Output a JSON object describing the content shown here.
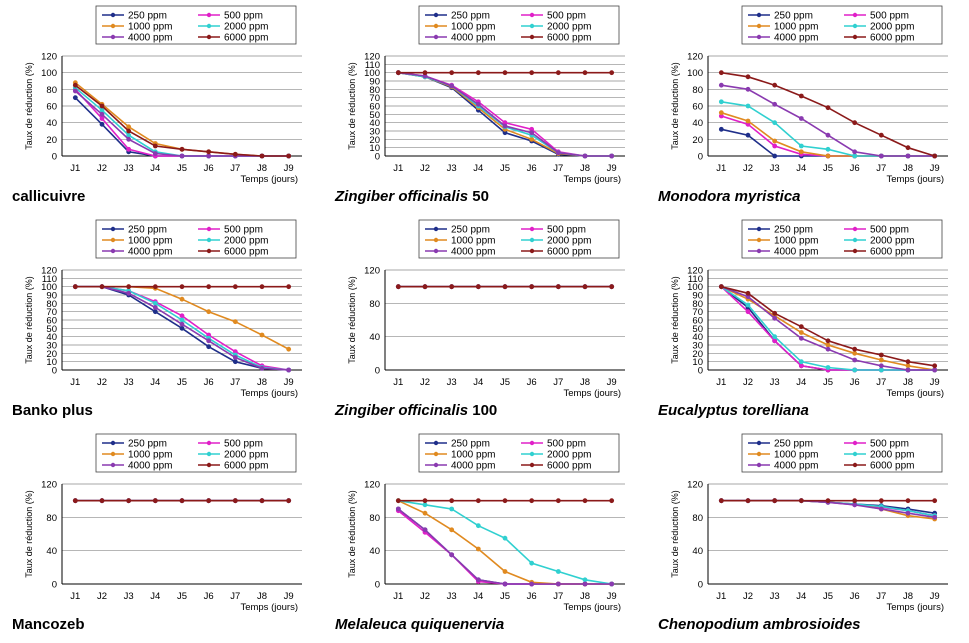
{
  "legend_entries": [
    "250 ppm",
    "500 ppm",
    "1000 ppm",
    "2000 ppm",
    "4000 ppm",
    "6000 ppm"
  ],
  "chart_data": [
    {
      "type": "line",
      "caption": "callicuivre",
      "caption_suffix": "",
      "caption_italic": false,
      "ylabel": "Taux de réduction (%)",
      "xlabel": "Temps (jours)",
      "x": [
        "J1",
        "J2",
        "J3",
        "J4",
        "J5",
        "J6",
        "J7",
        "J8",
        "J9"
      ],
      "yticks": [
        0,
        20,
        40,
        60,
        80,
        100,
        120
      ],
      "ylim": [
        0,
        120
      ],
      "grid": true,
      "legend": "top",
      "series": [
        {
          "name": "250 ppm",
          "color": "#1f2f8a",
          "values": [
            70,
            38,
            5,
            0,
            0,
            0,
            0,
            0,
            0
          ]
        },
        {
          "name": "500 ppm",
          "color": "#e020c8",
          "values": [
            80,
            45,
            8,
            0,
            0,
            0,
            0,
            0,
            0
          ]
        },
        {
          "name": "1000 ppm",
          "color": "#e08a20",
          "values": [
            88,
            62,
            35,
            15,
            8,
            5,
            2,
            0,
            0
          ]
        },
        {
          "name": "2000 ppm",
          "color": "#30d0d0",
          "values": [
            82,
            55,
            25,
            5,
            0,
            0,
            0,
            0,
            0
          ]
        },
        {
          "name": "4000 ppm",
          "color": "#8a3ab0",
          "values": [
            78,
            50,
            20,
            3,
            0,
            0,
            0,
            0,
            0
          ]
        },
        {
          "name": "6000 ppm",
          "color": "#8b1a1a",
          "values": [
            85,
            60,
            30,
            12,
            8,
            5,
            2,
            0,
            0
          ]
        }
      ]
    },
    {
      "type": "line",
      "caption": "Zingiber officinalis",
      "caption_suffix": "50",
      "caption_italic": true,
      "ylabel": "Taux de réduction (%)",
      "xlabel": "Temps (jours)",
      "x": [
        "J1",
        "J2",
        "J3",
        "J4",
        "J5",
        "J6",
        "J7",
        "J8",
        "J9"
      ],
      "yticks": [
        0,
        10,
        20,
        30,
        40,
        50,
        60,
        70,
        80,
        90,
        100,
        110,
        120
      ],
      "ylim": [
        0,
        120
      ],
      "grid": true,
      "legend": "top",
      "series": [
        {
          "name": "250 ppm",
          "color": "#1f2f8a",
          "values": [
            100,
            95,
            82,
            55,
            28,
            18,
            2,
            0,
            0
          ]
        },
        {
          "name": "500 ppm",
          "color": "#e020c8",
          "values": [
            100,
            96,
            85,
            65,
            40,
            32,
            5,
            0,
            0
          ]
        },
        {
          "name": "1000 ppm",
          "color": "#e08a20",
          "values": [
            100,
            95,
            83,
            58,
            32,
            20,
            3,
            0,
            0
          ]
        },
        {
          "name": "2000 ppm",
          "color": "#30d0d0",
          "values": [
            100,
            95,
            84,
            60,
            35,
            25,
            4,
            0,
            0
          ]
        },
        {
          "name": "4000 ppm",
          "color": "#8a3ab0",
          "values": [
            100,
            96,
            84,
            62,
            36,
            28,
            4,
            0,
            0
          ]
        },
        {
          "name": "6000 ppm",
          "color": "#8b1a1a",
          "values": [
            100,
            100,
            100,
            100,
            100,
            100,
            100,
            100,
            100
          ]
        }
      ]
    },
    {
      "type": "line",
      "caption": "Monodora myristica",
      "caption_suffix": "",
      "caption_italic": true,
      "ylabel": "Taux de réduction (%)",
      "xlabel": "Temps (jours)",
      "x": [
        "J1",
        "J2",
        "J3",
        "J4",
        "J5",
        "J6",
        "J7",
        "J8",
        "J9"
      ],
      "yticks": [
        0,
        20,
        40,
        60,
        80,
        100,
        120
      ],
      "ylim": [
        0,
        120
      ],
      "grid": true,
      "legend": "top",
      "series": [
        {
          "name": "250 ppm",
          "color": "#1f2f8a",
          "values": [
            32,
            25,
            0,
            0,
            0,
            0,
            0,
            0,
            0
          ]
        },
        {
          "name": "500 ppm",
          "color": "#e020c8",
          "values": [
            48,
            38,
            12,
            2,
            0,
            0,
            0,
            0,
            0
          ]
        },
        {
          "name": "1000 ppm",
          "color": "#e08a20",
          "values": [
            52,
            42,
            18,
            5,
            0,
            0,
            0,
            0,
            0
          ]
        },
        {
          "name": "2000 ppm",
          "color": "#30d0d0",
          "values": [
            65,
            60,
            40,
            12,
            8,
            0,
            0,
            0,
            0
          ]
        },
        {
          "name": "4000 ppm",
          "color": "#8a3ab0",
          "values": [
            85,
            80,
            62,
            45,
            25,
            5,
            0,
            0,
            0
          ]
        },
        {
          "name": "6000 ppm",
          "color": "#8b1a1a",
          "values": [
            100,
            95,
            85,
            72,
            58,
            40,
            25,
            10,
            0
          ]
        }
      ]
    },
    {
      "type": "line",
      "caption": "Banko plus",
      "caption_suffix": "",
      "caption_italic": false,
      "ylabel": "Taux de réduction (%)",
      "xlabel": "Temps (jours)",
      "x": [
        "J1",
        "J2",
        "J3",
        "J4",
        "J5",
        "J6",
        "J7",
        "J8",
        "J9"
      ],
      "yticks": [
        0,
        10,
        20,
        30,
        40,
        50,
        60,
        70,
        80,
        90,
        100,
        110,
        120
      ],
      "ylim": [
        0,
        120
      ],
      "grid": true,
      "legend": "top",
      "series": [
        {
          "name": "250 ppm",
          "color": "#1f2f8a",
          "values": [
            100,
            100,
            90,
            70,
            50,
            28,
            10,
            2,
            0
          ]
        },
        {
          "name": "500 ppm",
          "color": "#e020c8",
          "values": [
            100,
            100,
            95,
            82,
            65,
            42,
            22,
            5,
            0
          ]
        },
        {
          "name": "1000 ppm",
          "color": "#e08a20",
          "values": [
            100,
            100,
            100,
            98,
            85,
            70,
            58,
            42,
            25
          ]
        },
        {
          "name": "2000 ppm",
          "color": "#30d0d0",
          "values": [
            100,
            100,
            95,
            80,
            60,
            38,
            18,
            3,
            0
          ]
        },
        {
          "name": "4000 ppm",
          "color": "#8a3ab0",
          "values": [
            100,
            100,
            92,
            75,
            55,
            35,
            15,
            2,
            0
          ]
        },
        {
          "name": "6000 ppm",
          "color": "#8b1a1a",
          "values": [
            100,
            100,
            100,
            100,
            100,
            100,
            100,
            100,
            100
          ]
        }
      ]
    },
    {
      "type": "line",
      "caption": "Zingiber officinalis",
      "caption_suffix": "100",
      "caption_italic": true,
      "ylabel": "Taux de réduction (%)",
      "xlabel": "Temps (jours)",
      "x": [
        "J1",
        "J2",
        "J3",
        "J4",
        "J5",
        "J6",
        "J7",
        "J8",
        "J9"
      ],
      "yticks": [
        0,
        40,
        80,
        120
      ],
      "ylim": [
        0,
        120
      ],
      "grid": true,
      "legend": "top",
      "series": [
        {
          "name": "250 ppm",
          "color": "#1f2f8a",
          "values": [
            100,
            100,
            100,
            100,
            100,
            100,
            100,
            100,
            100
          ]
        },
        {
          "name": "500 ppm",
          "color": "#e020c8",
          "values": [
            100,
            100,
            100,
            100,
            100,
            100,
            100,
            100,
            100
          ]
        },
        {
          "name": "1000 ppm",
          "color": "#e08a20",
          "values": [
            100,
            100,
            100,
            100,
            100,
            100,
            100,
            100,
            100
          ]
        },
        {
          "name": "2000 ppm",
          "color": "#30d0d0",
          "values": [
            100,
            100,
            100,
            100,
            100,
            100,
            100,
            100,
            100
          ]
        },
        {
          "name": "4000 ppm",
          "color": "#8a3ab0",
          "values": [
            100,
            100,
            100,
            100,
            100,
            100,
            100,
            100,
            100
          ]
        },
        {
          "name": "6000 ppm",
          "color": "#8b1a1a",
          "values": [
            100,
            100,
            100,
            100,
            100,
            100,
            100,
            100,
            100
          ]
        }
      ]
    },
    {
      "type": "line",
      "caption": "Eucalyptus torelliana",
      "caption_suffix": "",
      "caption_italic": true,
      "ylabel": "Taux de réduction (%)",
      "xlabel": "Temps (jours)",
      "x": [
        "J1",
        "J2",
        "J3",
        "J4",
        "J5",
        "J6",
        "J7",
        "J8",
        "J9"
      ],
      "yticks": [
        0,
        10,
        20,
        30,
        40,
        50,
        60,
        70,
        80,
        90,
        100,
        110,
        120
      ],
      "ylim": [
        0,
        120
      ],
      "grid": true,
      "legend": "top",
      "series": [
        {
          "name": "250 ppm",
          "color": "#1f2f8a",
          "values": [
            100,
            75,
            35,
            5,
            0,
            0,
            0,
            0,
            0
          ]
        },
        {
          "name": "500 ppm",
          "color": "#e020c8",
          "values": [
            100,
            70,
            35,
            5,
            0,
            0,
            0,
            0,
            0
          ]
        },
        {
          "name": "1000 ppm",
          "color": "#e08a20",
          "values": [
            100,
            85,
            65,
            45,
            30,
            20,
            12,
            5,
            0
          ]
        },
        {
          "name": "2000 ppm",
          "color": "#30d0d0",
          "values": [
            100,
            78,
            40,
            10,
            3,
            0,
            0,
            0,
            0
          ]
        },
        {
          "name": "4000 ppm",
          "color": "#8a3ab0",
          "values": [
            100,
            88,
            62,
            38,
            25,
            12,
            5,
            0,
            0
          ]
        },
        {
          "name": "6000 ppm",
          "color": "#8b1a1a",
          "values": [
            100,
            92,
            68,
            52,
            35,
            25,
            18,
            10,
            5
          ]
        }
      ]
    },
    {
      "type": "line",
      "caption": "Mancozeb",
      "caption_suffix": "",
      "caption_italic": false,
      "ylabel": "Taux de réduction (%)",
      "xlabel": "Temps (jours)",
      "x": [
        "J1",
        "J2",
        "J3",
        "J4",
        "J5",
        "J6",
        "J7",
        "J8",
        "J9"
      ],
      "yticks": [
        0,
        40,
        80,
        120
      ],
      "ylim": [
        0,
        120
      ],
      "grid": true,
      "legend": "top",
      "series": [
        {
          "name": "250 ppm",
          "color": "#1f2f8a",
          "values": [
            100,
            100,
            100,
            100,
            100,
            100,
            100,
            100,
            100
          ]
        },
        {
          "name": "500 ppm",
          "color": "#e020c8",
          "values": [
            100,
            100,
            100,
            100,
            100,
            100,
            100,
            100,
            100
          ]
        },
        {
          "name": "1000 ppm",
          "color": "#e08a20",
          "values": [
            100,
            100,
            100,
            100,
            100,
            100,
            100,
            100,
            100
          ]
        },
        {
          "name": "2000 ppm",
          "color": "#30d0d0",
          "values": [
            100,
            100,
            100,
            100,
            100,
            100,
            100,
            100,
            100
          ]
        },
        {
          "name": "4000 ppm",
          "color": "#8a3ab0",
          "values": [
            100,
            100,
            100,
            100,
            100,
            100,
            100,
            100,
            100
          ]
        },
        {
          "name": "6000 ppm",
          "color": "#8b1a1a",
          "values": [
            100,
            100,
            100,
            100,
            100,
            100,
            100,
            100,
            100
          ]
        }
      ]
    },
    {
      "type": "line",
      "caption": "Melaleuca quiquenervia",
      "caption_suffix": "",
      "caption_italic": true,
      "ylabel": "Taux de réduction (%)",
      "xlabel": "Temps (jours)",
      "x": [
        "J1",
        "J2",
        "J3",
        "J4",
        "J5",
        "J6",
        "J7",
        "J8",
        "J9"
      ],
      "yticks": [
        0,
        40,
        80,
        120
      ],
      "ylim": [
        0,
        120
      ],
      "grid": true,
      "legend": "top",
      "series": [
        {
          "name": "250 ppm",
          "color": "#1f2f8a",
          "values": [
            90,
            65,
            35,
            5,
            0,
            0,
            0,
            0,
            0
          ]
        },
        {
          "name": "500 ppm",
          "color": "#e020c8",
          "values": [
            88,
            62,
            35,
            3,
            0,
            0,
            0,
            0,
            0
          ]
        },
        {
          "name": "1000 ppm",
          "color": "#e08a20",
          "values": [
            100,
            85,
            65,
            42,
            15,
            2,
            0,
            0,
            0
          ]
        },
        {
          "name": "2000 ppm",
          "color": "#30d0d0",
          "values": [
            100,
            95,
            90,
            70,
            55,
            25,
            15,
            5,
            0
          ]
        },
        {
          "name": "4000 ppm",
          "color": "#8a3ab0",
          "values": [
            90,
            65,
            35,
            5,
            0,
            0,
            0,
            0,
            0
          ]
        },
        {
          "name": "6000 ppm",
          "color": "#8b1a1a",
          "values": [
            100,
            100,
            100,
            100,
            100,
            100,
            100,
            100,
            100
          ]
        }
      ]
    },
    {
      "type": "line",
      "caption": "Chenopodium ambrosioides",
      "caption_suffix": "",
      "caption_italic": true,
      "ylabel": "Taux de réduction (%)",
      "xlabel": "Temps (jours)",
      "x": [
        "J1",
        "J2",
        "J3",
        "J4",
        "J5",
        "J6",
        "J7",
        "J8",
        "J9"
      ],
      "yticks": [
        0,
        40,
        80,
        120
      ],
      "ylim": [
        0,
        120
      ],
      "grid": true,
      "legend": "top",
      "series": [
        {
          "name": "250 ppm",
          "color": "#1f2f8a",
          "values": [
            100,
            100,
            100,
            100,
            98,
            96,
            94,
            90,
            85
          ]
        },
        {
          "name": "500 ppm",
          "color": "#e020c8",
          "values": [
            100,
            100,
            100,
            100,
            98,
            95,
            92,
            88,
            82
          ]
        },
        {
          "name": "1000 ppm",
          "color": "#e08a20",
          "values": [
            100,
            100,
            100,
            100,
            98,
            96,
            90,
            82,
            78
          ]
        },
        {
          "name": "2000 ppm",
          "color": "#30d0d0",
          "values": [
            100,
            100,
            100,
            100,
            98,
            96,
            93,
            88,
            82
          ]
        },
        {
          "name": "4000 ppm",
          "color": "#8a3ab0",
          "values": [
            100,
            100,
            100,
            100,
            98,
            95,
            90,
            85,
            80
          ]
        },
        {
          "name": "6000 ppm",
          "color": "#8b1a1a",
          "values": [
            100,
            100,
            100,
            100,
            100,
            100,
            100,
            100,
            100
          ]
        }
      ]
    }
  ]
}
